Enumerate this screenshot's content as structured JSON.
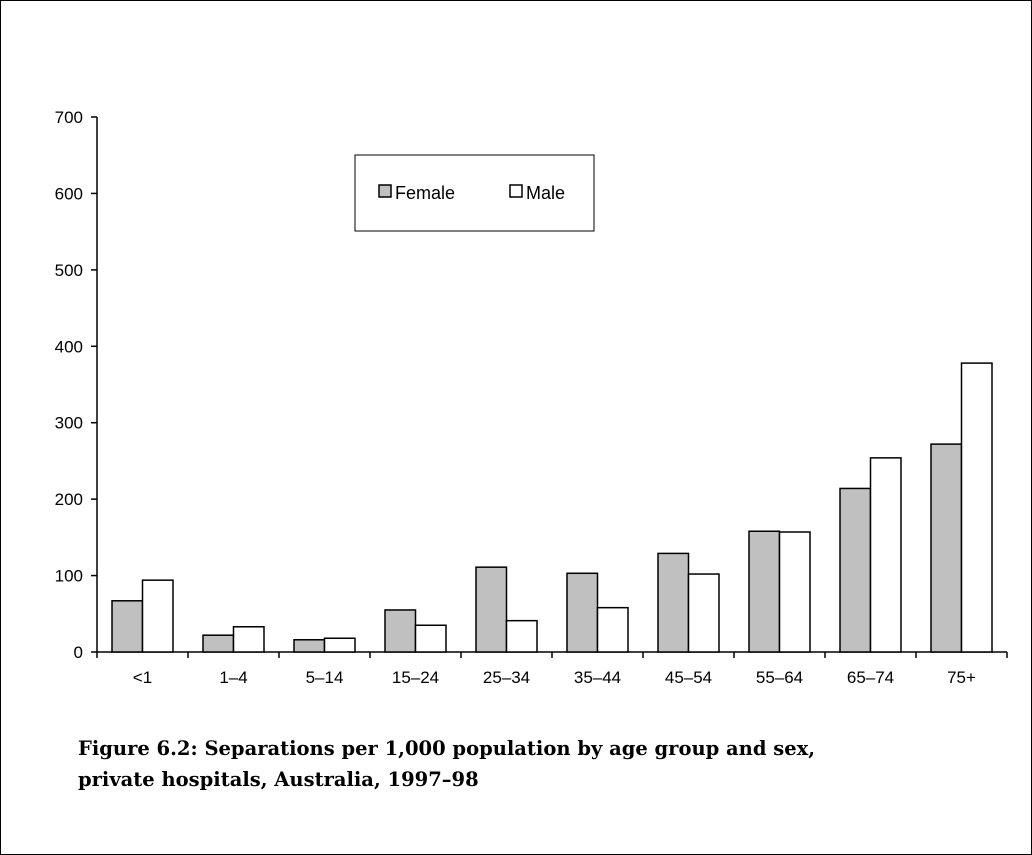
{
  "caption": "Figure 6.2: Separations per 1,000 population by age group and sex, private hospitals, Australia, 1997–98",
  "colors": {
    "female": "#c0c0c0",
    "male": "#ffffff",
    "stroke": "#000000"
  },
  "chart_data": {
    "type": "bar",
    "title": "",
    "xlabel": "",
    "ylabel": "",
    "categories": [
      "<1",
      "1–4",
      "5–14",
      "15–24",
      "25–34",
      "35–44",
      "45–54",
      "55–64",
      "65–74",
      "75+"
    ],
    "series": [
      {
        "name": "Female",
        "values": [
          67,
          22,
          16,
          55,
          111,
          103,
          129,
          158,
          214,
          272
        ]
      },
      {
        "name": "Male",
        "values": [
          94,
          33,
          18,
          35,
          41,
          58,
          102,
          157,
          254,
          378
        ]
      }
    ],
    "ylim": [
      0,
      700
    ],
    "yticks": [
      0,
      100,
      200,
      300,
      400,
      500,
      600,
      700
    ],
    "grid": false,
    "legend": "top-center"
  }
}
